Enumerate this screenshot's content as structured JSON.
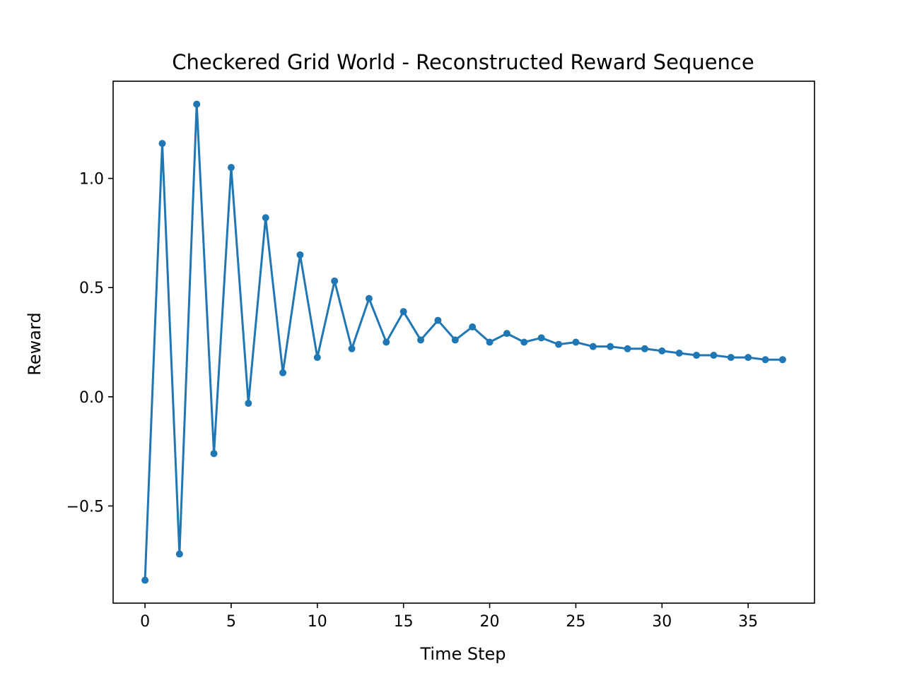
{
  "chart_data": {
    "type": "line",
    "title": "Checkered Grid World - Reconstructed Reward Sequence",
    "xlabel": "Time Step",
    "ylabel": "Reward",
    "xlim": [
      -1.85,
      38.85
    ],
    "ylim": [
      -0.945,
      1.445
    ],
    "xticks": [
      0,
      5,
      10,
      15,
      20,
      25,
      30,
      35
    ],
    "xtick_labels": [
      "0",
      "5",
      "10",
      "15",
      "20",
      "25",
      "30",
      "35"
    ],
    "yticks": [
      -0.5,
      0.0,
      0.5,
      1.0
    ],
    "ytick_labels": [
      "−0.5",
      "0.0",
      "0.5",
      "1.0"
    ],
    "grid": false,
    "legend": "none",
    "series": [
      {
        "color": "#1f77b4",
        "marker": "circle",
        "x": [
          0,
          1,
          2,
          3,
          4,
          5,
          6,
          7,
          8,
          9,
          10,
          11,
          12,
          13,
          14,
          15,
          16,
          17,
          18,
          19,
          20,
          21,
          22,
          23,
          24,
          25,
          26,
          27,
          28,
          29,
          30,
          31,
          32,
          33,
          34,
          35,
          36,
          37
        ],
        "y": [
          -0.84,
          1.16,
          -0.72,
          1.34,
          -0.26,
          1.05,
          -0.03,
          0.82,
          0.11,
          0.65,
          0.18,
          0.53,
          0.22,
          0.45,
          0.25,
          0.39,
          0.26,
          0.35,
          0.26,
          0.32,
          0.25,
          0.29,
          0.25,
          0.27,
          0.24,
          0.25,
          0.23,
          0.23,
          0.22,
          0.22,
          0.21,
          0.2,
          0.19,
          0.19,
          0.18,
          0.18,
          0.17,
          0.17
        ]
      }
    ]
  }
}
